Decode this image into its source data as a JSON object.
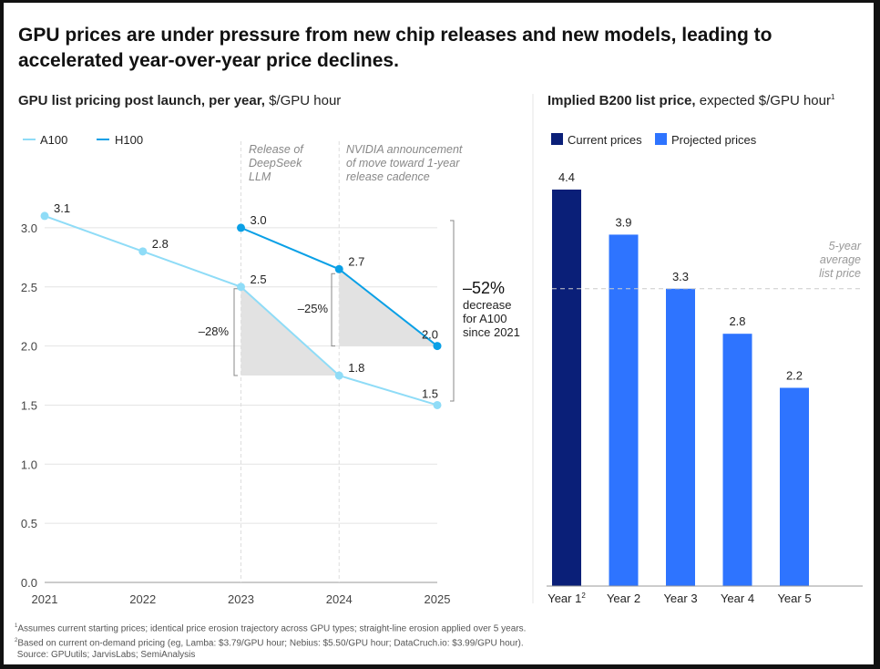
{
  "title": "GPU prices are under pressure from new chip releases and new models, leading to accelerated year-over-year price declines.",
  "colors": {
    "a100": "#8fdcf7",
    "h100": "#0aa0e6",
    "current": "#0a1f78",
    "projected": "#2e74ff",
    "shade": "#e2e2e2"
  },
  "footnotes": [
    "Assumes current starting prices; identical price erosion trajectory across GPU types; straight-line erosion applied over 5 years.",
    "Based on current on-demand pricing (eg, Lamba: $3.79/GPU hour; Nebius: $5.50/GPU hour; DataCruch.io: $3.99/GPU hour).",
    "Source: GPUutils; JarvisLabs; SemiAnalysis"
  ],
  "chart_data": [
    {
      "type": "line",
      "title_bold": "GPU list pricing post launch, per year,",
      "title_rest": "$/GPU hour",
      "x": [
        "2021",
        "2022",
        "2023",
        "2024",
        "2025"
      ],
      "ylim": [
        0,
        3.0
      ],
      "yticks": [
        "0.0",
        "0.5",
        "1.0",
        "1.5",
        "2.0",
        "2.5",
        "3.0"
      ],
      "grid": true,
      "legend": "top-left",
      "series": [
        {
          "name": "A100",
          "x": [
            "2021",
            "2022",
            "2023",
            "2024",
            "2025"
          ],
          "values": [
            3.1,
            2.8,
            2.5,
            1.75,
            1.5
          ],
          "labels": [
            "3.1",
            "2.8",
            "2.5",
            "1.8",
            "1.5"
          ]
        },
        {
          "name": "H100",
          "x": [
            "2023",
            "2024",
            "2025"
          ],
          "values": [
            3.0,
            2.65,
            2.0
          ],
          "labels": [
            "3.0",
            "2.7",
            "2.0"
          ]
        }
      ],
      "annotations": {
        "event1": [
          "Release of",
          "DeepSeek",
          "LLM"
        ],
        "event2": [
          "NVIDIA announcement",
          "of move toward 1-year",
          "release cadence"
        ],
        "a100_drop": "–28%",
        "h100_drop": "–25%",
        "total_value": "–52%",
        "total_text": [
          "decrease",
          "for A100",
          "since 2021"
        ]
      }
    },
    {
      "type": "bar",
      "title_bold": "Implied B200 list price,",
      "title_rest": "expected $/GPU hour",
      "title_sup": "1",
      "categories": [
        "Year 1",
        "Year 2",
        "Year 3",
        "Year 4",
        "Year 5"
      ],
      "category_sup": [
        "2",
        "",
        "",
        "",
        ""
      ],
      "values": [
        4.4,
        3.9,
        3.3,
        2.8,
        2.2
      ],
      "series_type": [
        "Current prices",
        "Projected prices",
        "Projected prices",
        "Projected prices",
        "Projected prices"
      ],
      "legend": [
        "Current prices",
        "Projected prices"
      ],
      "average": 3.3,
      "average_label": [
        "5-year",
        "average",
        "list price"
      ],
      "ylim": [
        0,
        4.4
      ]
    }
  ]
}
